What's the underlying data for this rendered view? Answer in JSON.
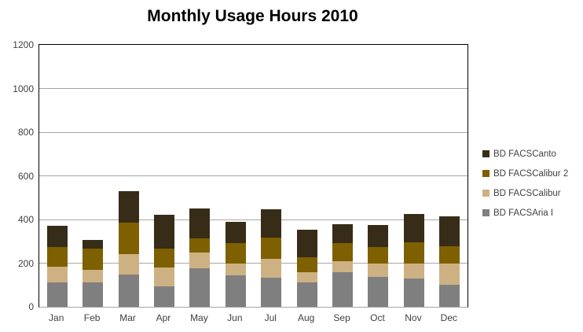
{
  "chart_data": {
    "type": "bar",
    "stacked": true,
    "title": "Monthly Usage Hours 2010",
    "xlabel": "",
    "ylabel": "",
    "ylim": [
      0,
      1200
    ],
    "yticks": [
      0,
      200,
      400,
      600,
      800,
      1000,
      1200
    ],
    "grid": true,
    "legend_position": "right",
    "categories": [
      "Jan",
      "Feb",
      "Mar",
      "Apr",
      "May",
      "Jun",
      "Jul",
      "Aug",
      "Sep",
      "Oct",
      "Nov",
      "Dec"
    ],
    "series": [
      {
        "name": "BD FACSAria I",
        "color": "#7f7f7f",
        "values": [
          110,
          113,
          148,
          95,
          175,
          143,
          133,
          113,
          159,
          136,
          130,
          101
        ]
      },
      {
        "name": "BD FACSCalibur",
        "color": "#cdb183",
        "values": [
          75,
          55,
          93,
          87,
          72,
          57,
          86,
          46,
          51,
          64,
          68,
          96
        ]
      },
      {
        "name": "BD FACSCalibur 2",
        "color": "#7e6000",
        "values": [
          90,
          100,
          143,
          83,
          65,
          93,
          98,
          69,
          82,
          74,
          96,
          82
        ]
      },
      {
        "name": "BD FACSCanto",
        "color": "#372c17",
        "values": [
          95,
          37,
          146,
          158,
          138,
          97,
          131,
          124,
          87,
          102,
          130,
          134
        ]
      }
    ],
    "colors": {
      "gridline": "#a6a6a6",
      "plot_border": "#000000",
      "baseline": "#a6a6a6",
      "tick_label": "#404040",
      "title": "#000000"
    }
  }
}
